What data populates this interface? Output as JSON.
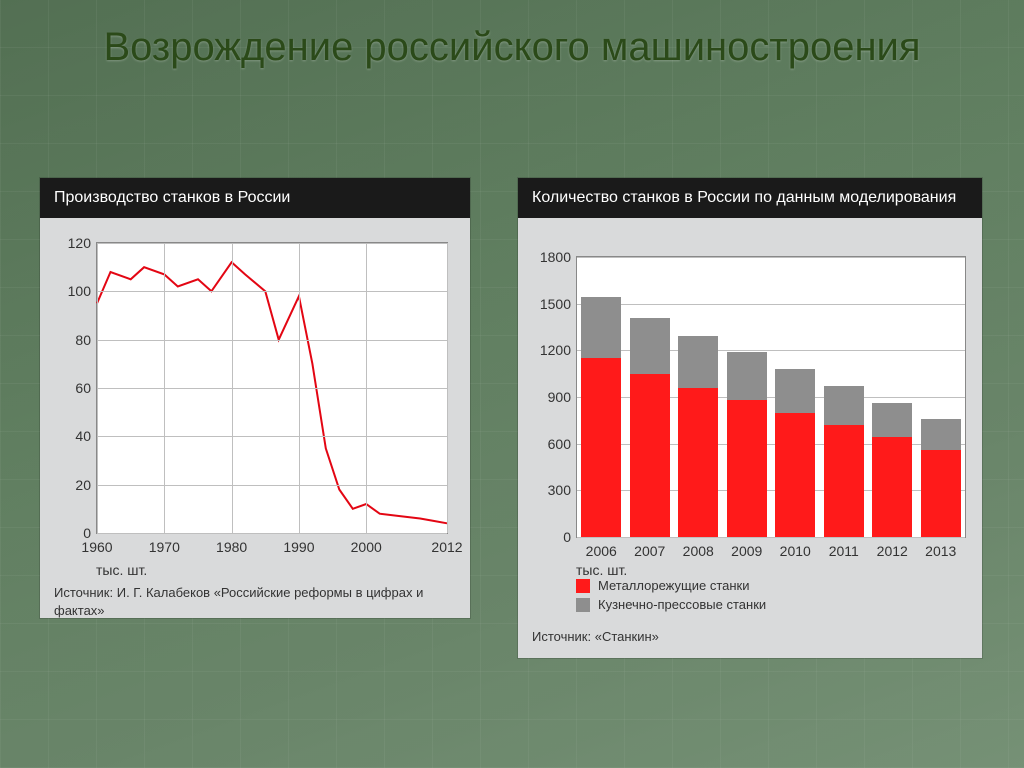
{
  "slide": {
    "title": "Возрождение российского машиностроения",
    "title_color": "#2b4a19",
    "title_fontsize": 40
  },
  "panel_bg": "#d9dadb",
  "header_bg": "#1a1a1a",
  "plot_bg": "#ffffff",
  "grid_color": "#bfbfbf",
  "text_color": "#333333",
  "line_chart": {
    "type": "line",
    "title": "Производство станков в России",
    "x": [
      1960,
      1962,
      1965,
      1967,
      1970,
      1972,
      1975,
      1977,
      1980,
      1982,
      1985,
      1987,
      1990,
      1992,
      1994,
      1996,
      1998,
      2000,
      2002,
      2005,
      2008,
      2010,
      2012
    ],
    "y": [
      95,
      108,
      105,
      110,
      107,
      102,
      105,
      100,
      112,
      107,
      100,
      80,
      98,
      70,
      35,
      18,
      10,
      12,
      8,
      7,
      6,
      5,
      4
    ],
    "xlim": [
      1960,
      2012
    ],
    "ylim": [
      0,
      120
    ],
    "ytick_step": 20,
    "xticks": [
      1960,
      1970,
      1980,
      1990,
      2000,
      2012
    ],
    "line_color": "#e30613",
    "line_width": 2,
    "axis_x_unit": "тыс. шт.",
    "source": "Источник: И. Г. Калабеков «Российские реформы в цифрах и фактах»"
  },
  "bar_chart": {
    "type": "stacked-bar",
    "title": "Количество станков в России по данным моделирования",
    "categories": [
      "2006",
      "2007",
      "2008",
      "2009",
      "2010",
      "2011",
      "2012",
      "2013"
    ],
    "series": [
      {
        "name": "Металлорежущие станки",
        "color": "#ff1a1a",
        "values": [
          1150,
          1050,
          960,
          880,
          800,
          720,
          640,
          560
        ]
      },
      {
        "name": "Кузнечно-прессовые станки",
        "color": "#8e8e8e",
        "values": [
          390,
          360,
          330,
          310,
          280,
          250,
          220,
          200
        ]
      }
    ],
    "ylim": [
      0,
      1800
    ],
    "ytick_step": 300,
    "bar_gap": 0.18,
    "axis_x_unit": "тыс. шт.",
    "source": "Источник: «Станкин»"
  }
}
